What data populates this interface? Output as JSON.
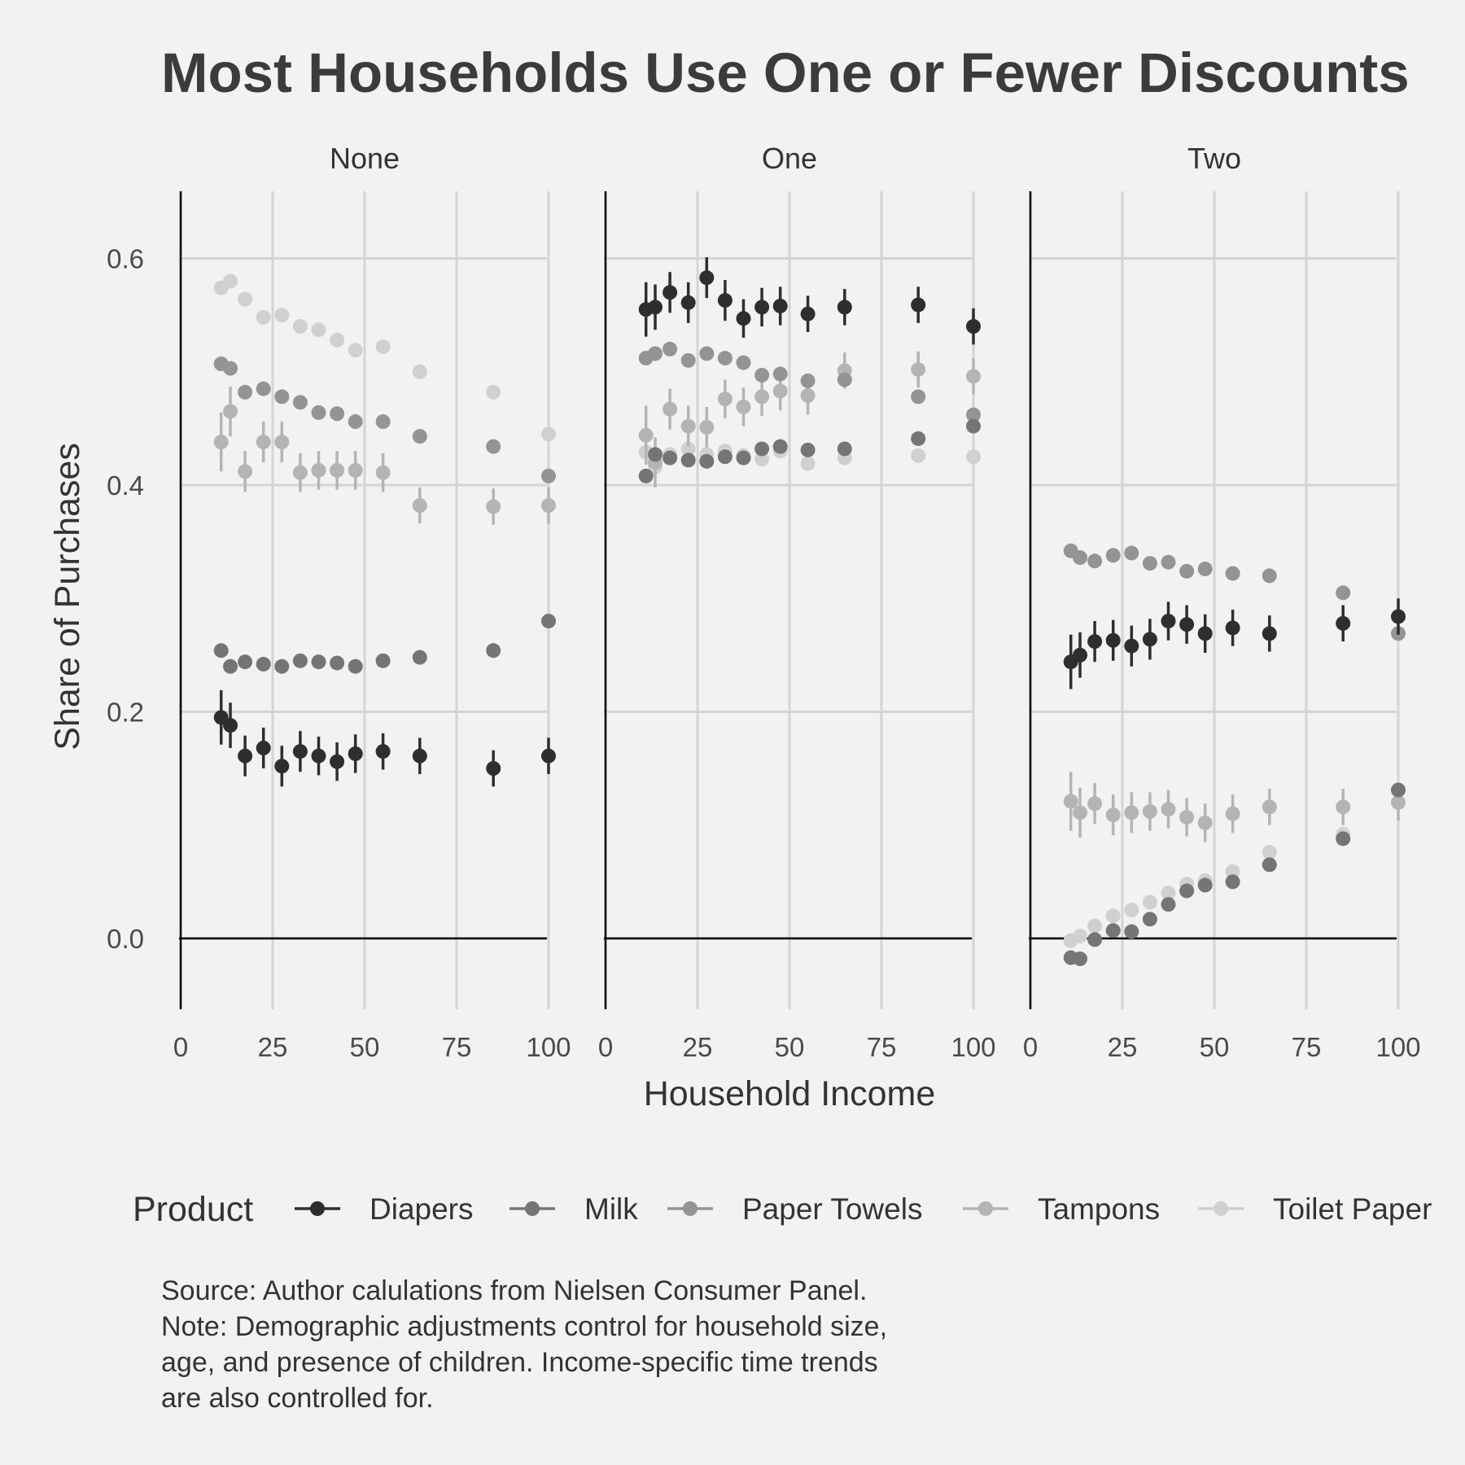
{
  "chart_data": {
    "type": "scatter",
    "title": "Most Households Use One or Fewer Discounts",
    "xlabel": "Household Income",
    "ylabel": "Share of Purchases",
    "xlim": [
      0,
      100
    ],
    "ylim": [
      -0.06,
      0.66
    ],
    "x_ticks": [
      "0",
      "25",
      "50",
      "75",
      "100"
    ],
    "y_ticks": [
      "0.0",
      "0.2",
      "0.4",
      "0.6"
    ],
    "grid": true,
    "legend_title": "Product",
    "legend_position": "bottom",
    "caption_lines": [
      "Source: Author calulations from Nielsen Consumer Panel.",
      "Note: Demographic adjustments control for household size,",
      "age, and presence of children. Income-specific time trends",
      "are also controlled for."
    ],
    "x": [
      11,
      13.5,
      17.5,
      22.5,
      27.5,
      32.5,
      37.5,
      42.5,
      47.5,
      55,
      65,
      85,
      100
    ],
    "series": [
      {
        "name": "Diapers",
        "color": "#2e2e2e"
      },
      {
        "name": "Milk",
        "color": "#757575"
      },
      {
        "name": "Paper Towels",
        "color": "#949494"
      },
      {
        "name": "Tampons",
        "color": "#b4b4b4"
      },
      {
        "name": "Toilet Paper",
        "color": "#d0d0d0"
      }
    ],
    "panels": [
      {
        "label": "None",
        "series": [
          {
            "name": "Diapers",
            "values": [
              0.195,
              0.188,
              0.161,
              0.168,
              0.152,
              0.165,
              0.161,
              0.156,
              0.163,
              0.165,
              0.161,
              0.15,
              0.161
            ],
            "errors": [
              0.024,
              0.02,
              0.018,
              0.018,
              0.018,
              0.018,
              0.017,
              0.017,
              0.017,
              0.016,
              0.016,
              0.016,
              0.016
            ]
          },
          {
            "name": "Milk",
            "values": [
              0.254,
              0.24,
              0.244,
              0.242,
              0.24,
              0.245,
              0.244,
              0.243,
              0.24,
              0.245,
              0.248,
              0.254,
              0.28
            ],
            "errors": [
              0.004,
              0.004,
              0.004,
              0.004,
              0.004,
              0.004,
              0.004,
              0.004,
              0.004,
              0.004,
              0.004,
              0.004,
              0.004
            ]
          },
          {
            "name": "Paper Towels",
            "values": [
              0.507,
              0.503,
              0.482,
              0.485,
              0.478,
              0.473,
              0.464,
              0.463,
              0.456,
              0.456,
              0.443,
              0.434,
              0.408
            ],
            "errors": [
              0.006,
              0.006,
              0.005,
              0.005,
              0.005,
              0.005,
              0.005,
              0.005,
              0.005,
              0.005,
              0.005,
              0.005,
              0.006
            ]
          },
          {
            "name": "Tampons",
            "values": [
              0.438,
              0.465,
              0.412,
              0.438,
              0.438,
              0.411,
              0.413,
              0.413,
              0.413,
              0.411,
              0.382,
              0.381,
              0.382
            ],
            "errors": [
              0.026,
              0.022,
              0.018,
              0.018,
              0.018,
              0.017,
              0.017,
              0.017,
              0.017,
              0.017,
              0.016,
              0.016,
              0.016
            ]
          },
          {
            "name": "Toilet Paper",
            "values": [
              0.574,
              0.58,
              0.564,
              0.548,
              0.55,
              0.54,
              0.537,
              0.528,
              0.519,
              0.522,
              0.5,
              0.482,
              0.445
            ],
            "errors": [
              0.005,
              0.005,
              0.005,
              0.005,
              0.005,
              0.005,
              0.005,
              0.005,
              0.005,
              0.005,
              0.005,
              0.005,
              0.005
            ]
          }
        ]
      },
      {
        "label": "One",
        "series": [
          {
            "name": "Diapers",
            "values": [
              0.555,
              0.557,
              0.57,
              0.561,
              0.583,
              0.563,
              0.547,
              0.557,
              0.558,
              0.551,
              0.557,
              0.559,
              0.54
            ],
            "errors": [
              0.024,
              0.02,
              0.018,
              0.018,
              0.018,
              0.018,
              0.017,
              0.017,
              0.017,
              0.016,
              0.016,
              0.016,
              0.016
            ]
          },
          {
            "name": "Milk",
            "values": [
              0.408,
              0.427,
              0.424,
              0.422,
              0.421,
              0.425,
              0.424,
              0.432,
              0.434,
              0.431,
              0.432,
              0.441,
              0.452
            ],
            "errors": [
              0.004,
              0.004,
              0.004,
              0.004,
              0.004,
              0.004,
              0.004,
              0.004,
              0.004,
              0.004,
              0.004,
              0.004,
              0.004
            ]
          },
          {
            "name": "Paper Towels",
            "values": [
              0.512,
              0.516,
              0.52,
              0.51,
              0.516,
              0.512,
              0.508,
              0.497,
              0.498,
              0.492,
              0.493,
              0.478,
              0.462
            ],
            "errors": [
              0.006,
              0.006,
              0.005,
              0.005,
              0.005,
              0.005,
              0.005,
              0.005,
              0.005,
              0.005,
              0.005,
              0.005,
              0.006
            ]
          },
          {
            "name": "Tampons",
            "values": [
              0.444,
              0.42,
              0.467,
              0.452,
              0.451,
              0.476,
              0.469,
              0.478,
              0.483,
              0.479,
              0.501,
              0.502,
              0.496
            ],
            "errors": [
              0.026,
              0.022,
              0.018,
              0.018,
              0.018,
              0.017,
              0.017,
              0.017,
              0.017,
              0.017,
              0.016,
              0.016,
              0.016
            ]
          },
          {
            "name": "Toilet Paper",
            "values": [
              0.429,
              0.416,
              0.427,
              0.432,
              0.427,
              0.43,
              0.426,
              0.423,
              0.43,
              0.419,
              0.424,
              0.426,
              0.425
            ],
            "errors": [
              0.005,
              0.005,
              0.005,
              0.005,
              0.005,
              0.005,
              0.005,
              0.005,
              0.005,
              0.005,
              0.005,
              0.005,
              0.005
            ]
          }
        ]
      },
      {
        "label": "Two",
        "series": [
          {
            "name": "Diapers",
            "values": [
              0.244,
              0.25,
              0.262,
              0.263,
              0.258,
              0.264,
              0.28,
              0.277,
              0.269,
              0.274,
              0.269,
              0.278,
              0.284
            ],
            "errors": [
              0.024,
              0.02,
              0.018,
              0.018,
              0.018,
              0.018,
              0.017,
              0.017,
              0.017,
              0.016,
              0.016,
              0.016,
              0.016
            ]
          },
          {
            "name": "Milk",
            "values": [
              -0.017,
              -0.018,
              -0.001,
              0.007,
              0.006,
              0.017,
              0.03,
              0.042,
              0.047,
              0.05,
              0.065,
              0.088,
              0.131
            ],
            "errors": [
              0.004,
              0.004,
              0.004,
              0.004,
              0.004,
              0.004,
              0.004,
              0.004,
              0.004,
              0.004,
              0.004,
              0.004,
              0.004
            ]
          },
          {
            "name": "Paper Towels",
            "values": [
              0.342,
              0.336,
              0.333,
              0.338,
              0.34,
              0.331,
              0.332,
              0.324,
              0.326,
              0.322,
              0.32,
              0.305,
              0.269
            ],
            "errors": [
              0.006,
              0.006,
              0.005,
              0.005,
              0.005,
              0.005,
              0.005,
              0.005,
              0.005,
              0.005,
              0.005,
              0.005,
              0.006
            ]
          },
          {
            "name": "Tampons",
            "values": [
              0.121,
              0.111,
              0.119,
              0.109,
              0.111,
              0.112,
              0.114,
              0.107,
              0.102,
              0.11,
              0.116,
              0.116,
              0.12
            ],
            "errors": [
              0.026,
              0.022,
              0.018,
              0.018,
              0.018,
              0.017,
              0.017,
              0.017,
              0.017,
              0.017,
              0.016,
              0.016,
              0.016
            ]
          },
          {
            "name": "Toilet Paper",
            "values": [
              -0.002,
              0.002,
              0.011,
              0.02,
              0.025,
              0.032,
              0.04,
              0.048,
              0.051,
              0.059,
              0.076,
              0.092,
              0.12
            ],
            "errors": [
              0.005,
              0.005,
              0.005,
              0.005,
              0.005,
              0.005,
              0.005,
              0.005,
              0.005,
              0.005,
              0.005,
              0.005,
              0.005
            ]
          }
        ]
      }
    ]
  }
}
